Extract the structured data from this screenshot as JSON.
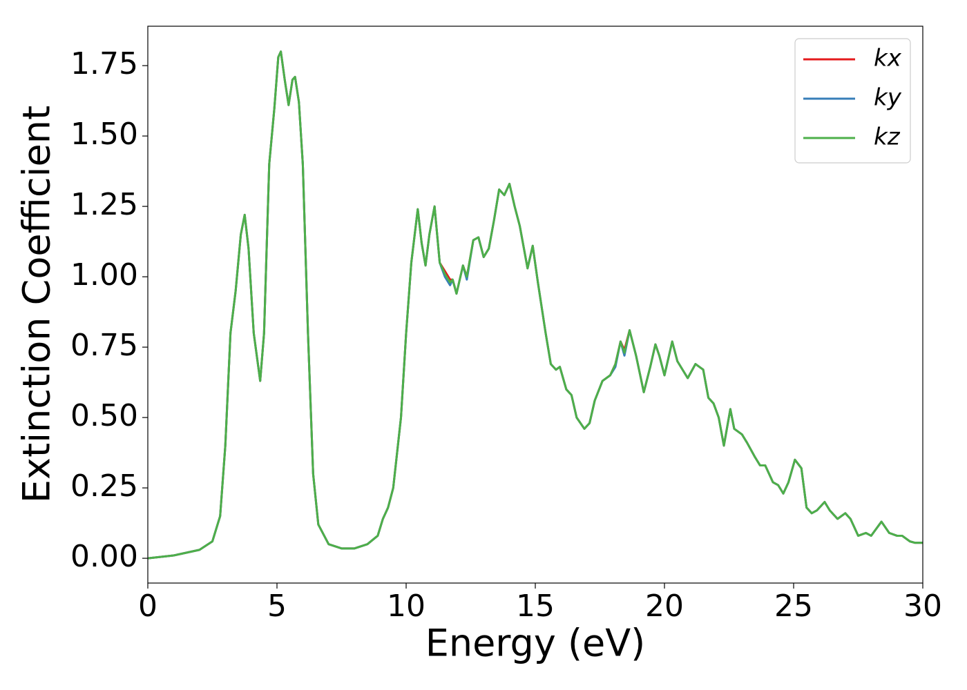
{
  "chart_data": {
    "type": "line",
    "xlabel": "Energy (eV)",
    "ylabel": "Extinction Coefficient",
    "xlim": [
      0,
      30
    ],
    "ylim": [
      -0.088,
      1.89
    ],
    "xticks": [
      0,
      5,
      10,
      15,
      20,
      25,
      30
    ],
    "yticks": [
      {
        "value": 0,
        "label": "0.00"
      },
      {
        "value": 0.25,
        "label": "0.25"
      },
      {
        "value": 0.5,
        "label": "0.50"
      },
      {
        "value": 0.75,
        "label": "0.75"
      },
      {
        "value": 1,
        "label": "1.00"
      },
      {
        "value": 1.25,
        "label": "1.25"
      },
      {
        "value": 1.5,
        "label": "1.50"
      },
      {
        "value": 1.75,
        "label": "1.75"
      }
    ],
    "grid": false,
    "legend": "upper right",
    "x": [
      0,
      1,
      2,
      2.5,
      2.8,
      3.0,
      3.2,
      3.4,
      3.6,
      3.75,
      3.9,
      4.1,
      4.35,
      4.5,
      4.7,
      4.9,
      5.05,
      5.15,
      5.3,
      5.45,
      5.6,
      5.7,
      5.85,
      6.0,
      6.2,
      6.4,
      6.6,
      7.0,
      7.5,
      8.0,
      8.5,
      8.9,
      9.1,
      9.3,
      9.5,
      9.8,
      10.0,
      10.2,
      10.45,
      10.6,
      10.75,
      10.9,
      11.1,
      11.3,
      11.5,
      11.7,
      11.8,
      11.95,
      12.2,
      12.35,
      12.6,
      12.8,
      13.0,
      13.2,
      13.4,
      13.6,
      13.8,
      14.0,
      14.2,
      14.4,
      14.7,
      14.9,
      15.1,
      15.4,
      15.6,
      15.8,
      15.95,
      16.2,
      16.4,
      16.6,
      16.9,
      17.1,
      17.3,
      17.6,
      17.9,
      18.1,
      18.3,
      18.45,
      18.65,
      18.9,
      19.2,
      19.45,
      19.65,
      19.8,
      20.0,
      20.3,
      20.5,
      20.7,
      20.9,
      21.2,
      21.5,
      21.7,
      21.9,
      22.1,
      22.3,
      22.55,
      22.7,
      23.0,
      23.2,
      23.5,
      23.7,
      23.9,
      24.2,
      24.4,
      24.6,
      24.8,
      25.05,
      25.3,
      25.5,
      25.7,
      25.9,
      26.2,
      26.4,
      26.7,
      27.0,
      27.2,
      27.5,
      27.8,
      28.0,
      28.4,
      28.7,
      29.0,
      29.2,
      29.5,
      29.7,
      30
    ],
    "series": [
      {
        "name": "kx",
        "color": "#e41a1c",
        "values": [
          0.0,
          0.01,
          0.03,
          0.06,
          0.15,
          0.4,
          0.8,
          0.95,
          1.15,
          1.22,
          1.1,
          0.8,
          0.63,
          0.8,
          1.4,
          1.6,
          1.78,
          1.8,
          1.7,
          1.61,
          1.7,
          1.71,
          1.62,
          1.4,
          0.8,
          0.3,
          0.12,
          0.05,
          0.035,
          0.035,
          0.05,
          0.08,
          0.14,
          0.18,
          0.25,
          0.5,
          0.8,
          1.05,
          1.24,
          1.12,
          1.04,
          1.15,
          1.25,
          1.05,
          1.02,
          0.99,
          0.99,
          0.94,
          1.04,
          1.0,
          1.13,
          1.14,
          1.07,
          1.1,
          1.2,
          1.31,
          1.29,
          1.33,
          1.25,
          1.18,
          1.03,
          1.11,
          0.98,
          0.8,
          0.69,
          0.67,
          0.68,
          0.6,
          0.58,
          0.5,
          0.46,
          0.48,
          0.56,
          0.63,
          0.65,
          0.69,
          0.77,
          0.74,
          0.81,
          0.72,
          0.59,
          0.68,
          0.76,
          0.72,
          0.65,
          0.77,
          0.7,
          0.67,
          0.64,
          0.69,
          0.67,
          0.57,
          0.55,
          0.5,
          0.4,
          0.53,
          0.46,
          0.44,
          0.41,
          0.36,
          0.33,
          0.33,
          0.27,
          0.26,
          0.23,
          0.27,
          0.35,
          0.32,
          0.18,
          0.16,
          0.17,
          0.2,
          0.17,
          0.14,
          0.16,
          0.14,
          0.08,
          0.09,
          0.08,
          0.13,
          0.09,
          0.08,
          0.08,
          0.06,
          0.055,
          0.055
        ]
      },
      {
        "name": "ky",
        "color": "#377eb8",
        "values": [
          0.0,
          0.01,
          0.03,
          0.06,
          0.15,
          0.4,
          0.8,
          0.95,
          1.15,
          1.22,
          1.1,
          0.8,
          0.63,
          0.8,
          1.4,
          1.6,
          1.78,
          1.8,
          1.7,
          1.61,
          1.7,
          1.71,
          1.62,
          1.4,
          0.8,
          0.3,
          0.12,
          0.05,
          0.035,
          0.035,
          0.05,
          0.08,
          0.14,
          0.18,
          0.25,
          0.5,
          0.8,
          1.05,
          1.24,
          1.12,
          1.04,
          1.15,
          1.25,
          1.05,
          1.0,
          0.97,
          0.99,
          0.94,
          1.04,
          0.99,
          1.13,
          1.14,
          1.07,
          1.1,
          1.2,
          1.31,
          1.29,
          1.33,
          1.25,
          1.18,
          1.03,
          1.11,
          0.98,
          0.8,
          0.69,
          0.67,
          0.68,
          0.6,
          0.58,
          0.5,
          0.46,
          0.48,
          0.56,
          0.63,
          0.65,
          0.68,
          0.77,
          0.72,
          0.81,
          0.72,
          0.59,
          0.68,
          0.76,
          0.72,
          0.65,
          0.77,
          0.7,
          0.67,
          0.64,
          0.69,
          0.67,
          0.57,
          0.55,
          0.5,
          0.4,
          0.53,
          0.46,
          0.44,
          0.41,
          0.36,
          0.33,
          0.33,
          0.27,
          0.26,
          0.23,
          0.27,
          0.35,
          0.32,
          0.18,
          0.16,
          0.17,
          0.2,
          0.17,
          0.14,
          0.16,
          0.14,
          0.08,
          0.09,
          0.08,
          0.13,
          0.09,
          0.08,
          0.08,
          0.06,
          0.055,
          0.055
        ]
      },
      {
        "name": "kz",
        "color": "#4daf4a",
        "values": [
          0.0,
          0.01,
          0.03,
          0.06,
          0.15,
          0.4,
          0.8,
          0.95,
          1.15,
          1.22,
          1.1,
          0.8,
          0.63,
          0.8,
          1.4,
          1.6,
          1.78,
          1.8,
          1.7,
          1.61,
          1.7,
          1.71,
          1.62,
          1.4,
          0.8,
          0.3,
          0.12,
          0.05,
          0.035,
          0.035,
          0.05,
          0.08,
          0.14,
          0.18,
          0.25,
          0.5,
          0.8,
          1.05,
          1.24,
          1.12,
          1.04,
          1.15,
          1.25,
          1.05,
          1.01,
          0.98,
          0.99,
          0.94,
          1.04,
          1.0,
          1.13,
          1.14,
          1.07,
          1.1,
          1.2,
          1.31,
          1.29,
          1.33,
          1.25,
          1.18,
          1.03,
          1.11,
          0.98,
          0.8,
          0.69,
          0.67,
          0.68,
          0.6,
          0.58,
          0.5,
          0.46,
          0.48,
          0.56,
          0.63,
          0.65,
          0.69,
          0.77,
          0.73,
          0.81,
          0.72,
          0.59,
          0.68,
          0.76,
          0.72,
          0.65,
          0.77,
          0.7,
          0.67,
          0.64,
          0.69,
          0.67,
          0.57,
          0.55,
          0.5,
          0.4,
          0.53,
          0.46,
          0.44,
          0.41,
          0.36,
          0.33,
          0.33,
          0.27,
          0.26,
          0.23,
          0.27,
          0.35,
          0.32,
          0.18,
          0.16,
          0.17,
          0.2,
          0.17,
          0.14,
          0.16,
          0.14,
          0.08,
          0.09,
          0.08,
          0.13,
          0.09,
          0.08,
          0.08,
          0.06,
          0.055,
          0.055
        ]
      }
    ]
  }
}
